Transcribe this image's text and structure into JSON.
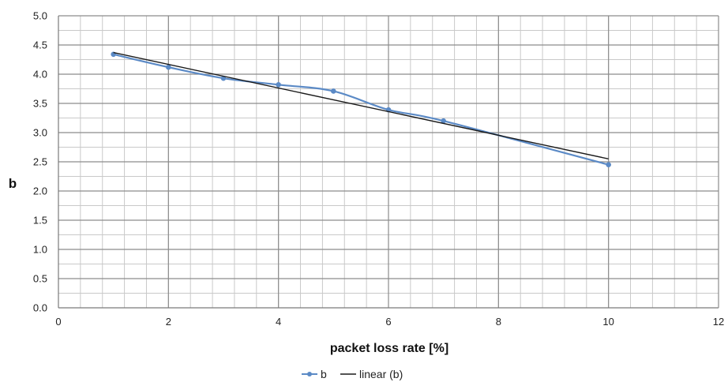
{
  "chart_data": {
    "type": "line",
    "title": "",
    "xlabel": "packet loss rate [%]",
    "ylabel": "b",
    "xlim": [
      0,
      12
    ],
    "ylim": [
      0,
      5
    ],
    "x_ticks": [
      "0",
      "2",
      "4",
      "6",
      "8",
      "10",
      "12"
    ],
    "y_ticks": [
      "0.0",
      "0.5",
      "1.0",
      "1.5",
      "2.0",
      "2.5",
      "3.0",
      "3.5",
      "4.0",
      "4.5",
      "5.0"
    ],
    "x_minor_step": 0.4,
    "y_minor_step": 0.25,
    "grid": true,
    "legend_position": "bottom",
    "series": [
      {
        "name": "b",
        "style": "line-markers",
        "color": "#5b8ac6",
        "smooth": true,
        "x": [
          1,
          2,
          3,
          4,
          5,
          6,
          7,
          10
        ],
        "y": [
          4.34,
          4.12,
          3.93,
          3.82,
          3.71,
          3.39,
          3.2,
          2.45
        ]
      },
      {
        "name": "linear (b)",
        "style": "line",
        "color": "#1a1a1a",
        "smooth": false,
        "x": [
          1,
          10
        ],
        "y": [
          4.37,
          2.55
        ]
      }
    ]
  },
  "colors": {
    "major_grid": "#8c8c8c",
    "minor_grid": "#c9c9c9",
    "axis": "#7a7a7a"
  }
}
